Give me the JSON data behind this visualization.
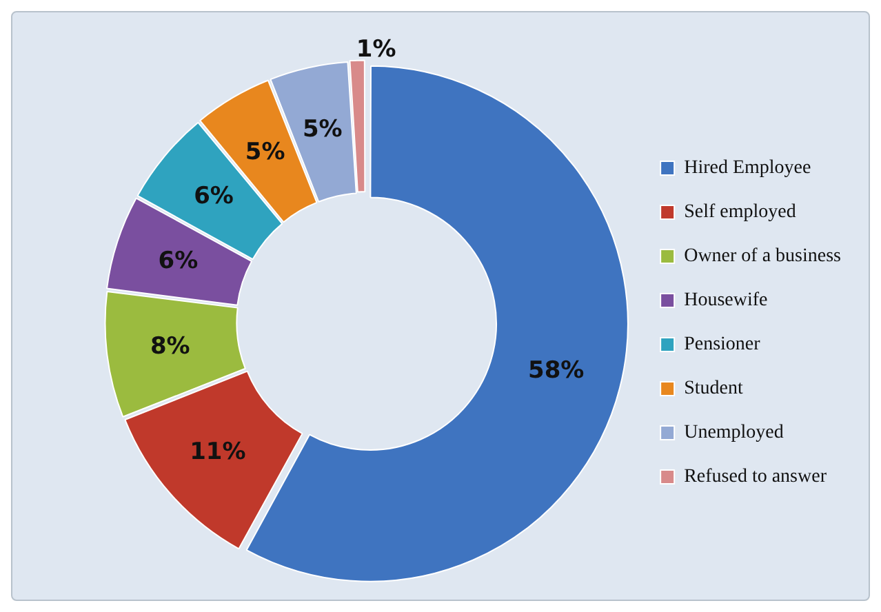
{
  "chart_data": {
    "type": "donut",
    "categories": [
      "Hired Employee",
      "Self employed",
      "Owner of a business",
      "Housewife",
      "Pensioner",
      "Student",
      "Unemployed",
      "Refused to answer"
    ],
    "values": [
      58,
      11,
      8,
      6,
      6,
      5,
      5,
      1
    ],
    "colors": [
      "#3f74c0",
      "#c0392b",
      "#9bbb3f",
      "#7a4f9f",
      "#2fa3bf",
      "#e8871e",
      "#93a9d4",
      "#d88a8a"
    ],
    "value_labels": [
      "58%",
      "11%",
      "8%",
      "6%",
      "6%",
      "5%",
      "5%",
      "1%"
    ],
    "legend": "right"
  }
}
